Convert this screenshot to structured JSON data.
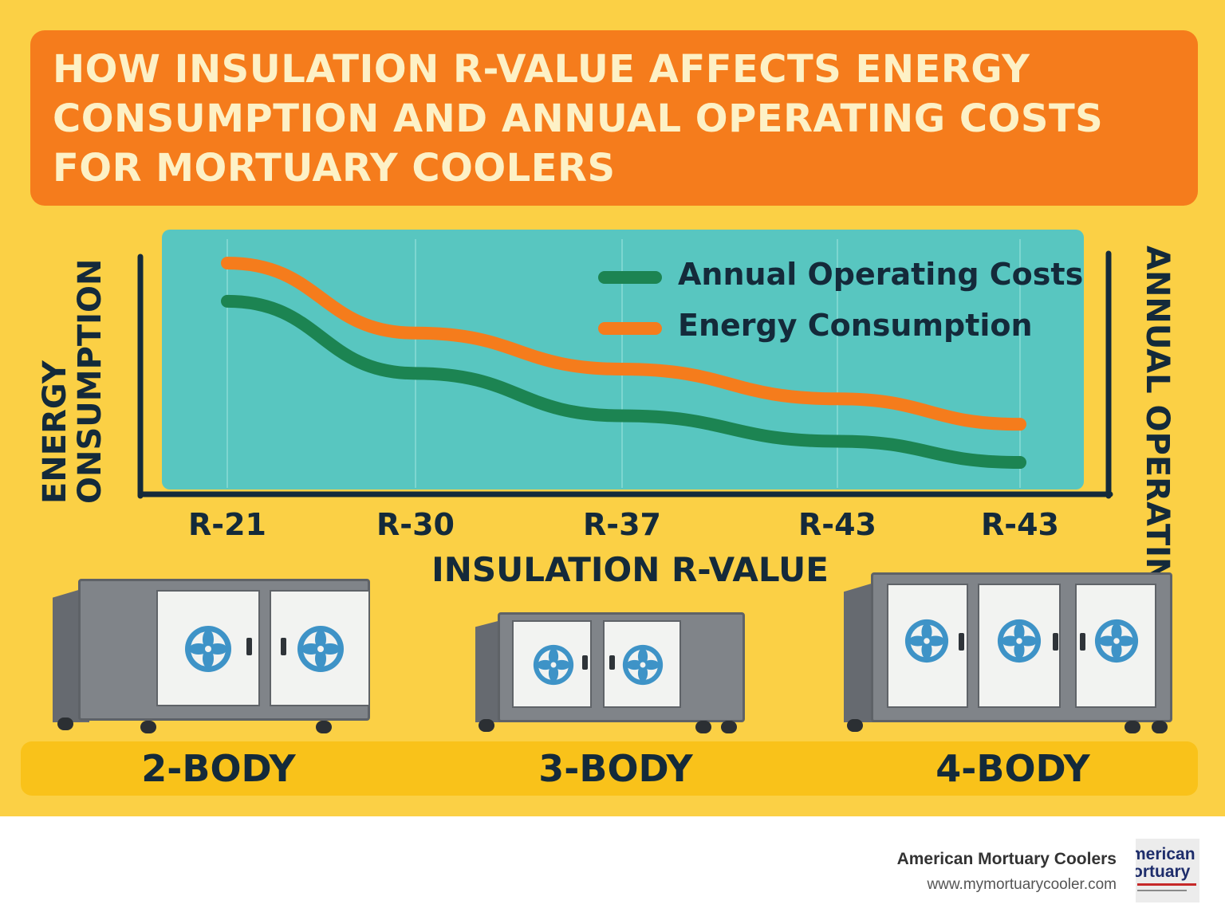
{
  "title": "HOW INSULATION R-VALUE AFFECTS ENERGY CONSUMPTION AND ANNUAL OPERATING COSTS FOR MORTUARY COOLERS",
  "chart_data": {
    "type": "line",
    "title": "HOW INSULATION R-VALUE AFFECTS ENERGY CONSUMPTION AND ANNUAL OPERATING COSTS FOR MORTUARY COOLERS",
    "xlabel": "INSULATION R-VALUE",
    "ylabel_left_line1": "ENERGY",
    "ylabel_left_line2": "ONSUMPTION",
    "ylabel_right": "ANNUAL OPERATING",
    "categories": [
      "R-21",
      "R-30",
      "R-37",
      "R-43",
      "R-43"
    ],
    "ylim": [
      0,
      100
    ],
    "grid": false,
    "legend_position": "top-right",
    "series": [
      {
        "name": "Annual Operating Costs",
        "color": "#1c8452",
        "values": [
          82,
          48,
          28,
          16,
          6
        ]
      },
      {
        "name": "Energy Consumption",
        "color": "#f57c1c",
        "values": [
          100,
          67,
          50,
          36,
          24
        ]
      }
    ]
  },
  "units": [
    {
      "label": "2-BODY",
      "doors": 2
    },
    {
      "label": "3-BODY",
      "doors": 2
    },
    {
      "label": "4-BODY",
      "doors": 3
    }
  ],
  "colors": {
    "background": "#fbd045",
    "title_band": "#f57c1c",
    "plot_area": "#58c6c0",
    "text": "#142a3a",
    "fan": "#3e93c7"
  },
  "icons": {
    "unit_fan": "fan-icon"
  },
  "footer": {
    "company": "American Mortuary Coolers",
    "url": "www.mymortuarycooler.com",
    "logo_text": [
      "merican",
      "ortuary"
    ]
  }
}
